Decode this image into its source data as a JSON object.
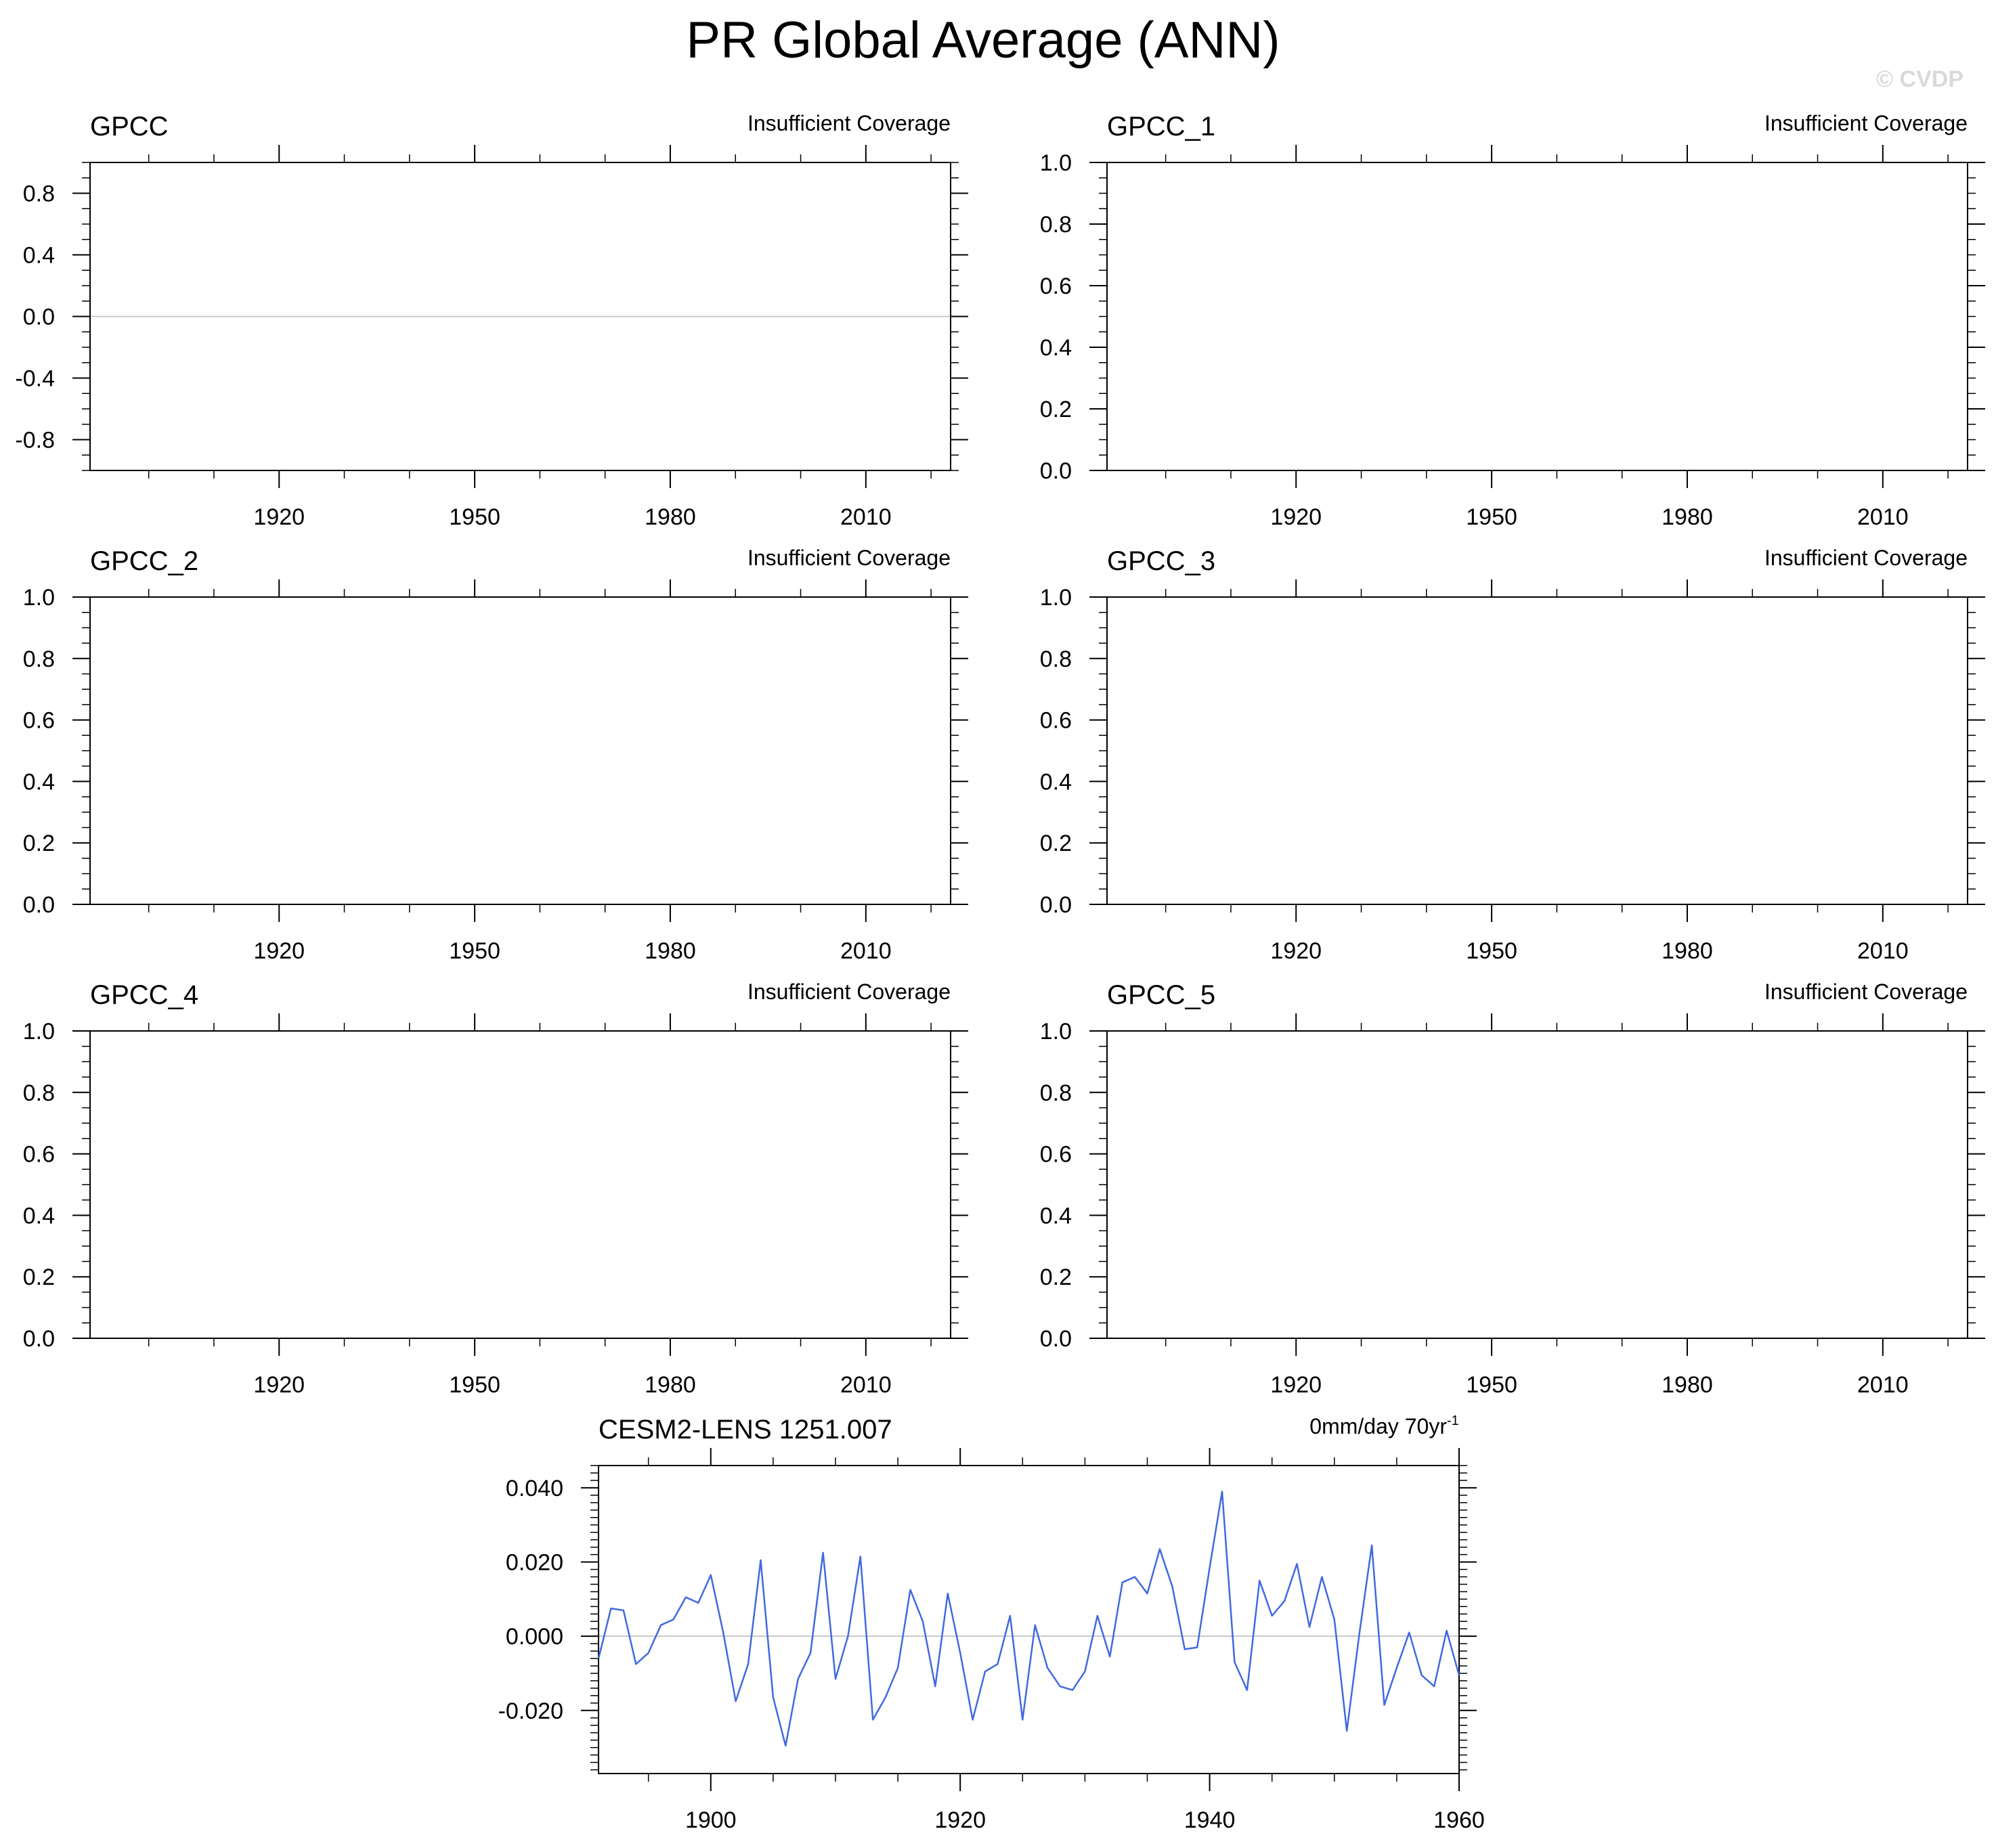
{
  "title": "PR Global Average (ANN)",
  "watermark": "© CVDP",
  "colors": {
    "line": "#4169e1",
    "zero_line": "#c8c8c8",
    "axis": "#000000",
    "watermark": "#d9d9d9"
  },
  "chart_data": [
    {
      "type": "line",
      "title": "GPCC",
      "note": "Insufficient Coverage",
      "xlim": [
        1891,
        2023
      ],
      "xticks": [
        1920,
        1950,
        1980,
        2010
      ],
      "ylim": [
        -1.0,
        1.0
      ],
      "yticks": [
        -0.8,
        -0.4,
        0.0,
        0.4,
        0.8
      ],
      "ytick_labels": [
        "-0.8",
        "-0.4",
        "0.0",
        "0.4",
        "0.8"
      ],
      "zero_line": true,
      "series": []
    },
    {
      "type": "line",
      "title": "GPCC_1",
      "note": "Insufficient Coverage",
      "xlim": [
        1891,
        2023
      ],
      "xticks": [
        1920,
        1950,
        1980,
        2010
      ],
      "ylim": [
        0.0,
        1.0
      ],
      "yticks": [
        0.0,
        0.2,
        0.4,
        0.6,
        0.8,
        1.0
      ],
      "ytick_labels": [
        "0.0",
        "0.2",
        "0.4",
        "0.6",
        "0.8",
        "1.0"
      ],
      "zero_line": false,
      "series": []
    },
    {
      "type": "line",
      "title": "GPCC_2",
      "note": "Insufficient Coverage",
      "xlim": [
        1891,
        2023
      ],
      "xticks": [
        1920,
        1950,
        1980,
        2010
      ],
      "ylim": [
        0.0,
        1.0
      ],
      "yticks": [
        0.0,
        0.2,
        0.4,
        0.6,
        0.8,
        1.0
      ],
      "ytick_labels": [
        "0.0",
        "0.2",
        "0.4",
        "0.6",
        "0.8",
        "1.0"
      ],
      "zero_line": false,
      "series": []
    },
    {
      "type": "line",
      "title": "GPCC_3",
      "note": "Insufficient Coverage",
      "xlim": [
        1891,
        2023
      ],
      "xticks": [
        1920,
        1950,
        1980,
        2010
      ],
      "ylim": [
        0.0,
        1.0
      ],
      "yticks": [
        0.0,
        0.2,
        0.4,
        0.6,
        0.8,
        1.0
      ],
      "ytick_labels": [
        "0.0",
        "0.2",
        "0.4",
        "0.6",
        "0.8",
        "1.0"
      ],
      "zero_line": false,
      "series": []
    },
    {
      "type": "line",
      "title": "GPCC_4",
      "note": "Insufficient Coverage",
      "xlim": [
        1891,
        2023
      ],
      "xticks": [
        1920,
        1950,
        1980,
        2010
      ],
      "ylim": [
        0.0,
        1.0
      ],
      "yticks": [
        0.0,
        0.2,
        0.4,
        0.6,
        0.8,
        1.0
      ],
      "ytick_labels": [
        "0.0",
        "0.2",
        "0.4",
        "0.6",
        "0.8",
        "1.0"
      ],
      "zero_line": false,
      "series": []
    },
    {
      "type": "line",
      "title": "GPCC_5",
      "note": "Insufficient Coverage",
      "xlim": [
        1891,
        2023
      ],
      "xticks": [
        1920,
        1950,
        1980,
        2010
      ],
      "ylim": [
        0.0,
        1.0
      ],
      "yticks": [
        0.0,
        0.2,
        0.4,
        0.6,
        0.8,
        1.0
      ],
      "ytick_labels": [
        "0.0",
        "0.2",
        "0.4",
        "0.6",
        "0.8",
        "1.0"
      ],
      "zero_line": false,
      "series": []
    },
    {
      "type": "line",
      "title": "CESM2-LENS 1251.007",
      "note": "0mm/day 70yr",
      "note_superscript": "-1",
      "xlim": [
        1891,
        1960
      ],
      "xticks": [
        1900,
        1920,
        1940,
        1960
      ],
      "ylim": [
        -0.037,
        0.046
      ],
      "yticks": [
        -0.02,
        0.0,
        0.02,
        0.04
      ],
      "ytick_labels": [
        "-0.020",
        "0.000",
        "0.020",
        "0.040"
      ],
      "zero_line": true,
      "x": [
        1891,
        1892,
        1893,
        1894,
        1895,
        1896,
        1897,
        1898,
        1899,
        1900,
        1901,
        1902,
        1903,
        1904,
        1905,
        1906,
        1907,
        1908,
        1909,
        1910,
        1911,
        1912,
        1913,
        1914,
        1915,
        1916,
        1917,
        1918,
        1919,
        1920,
        1921,
        1922,
        1923,
        1924,
        1925,
        1926,
        1927,
        1928,
        1929,
        1930,
        1931,
        1932,
        1933,
        1934,
        1935,
        1936,
        1937,
        1938,
        1939,
        1940,
        1941,
        1942,
        1943,
        1944,
        1945,
        1946,
        1947,
        1948,
        1949,
        1950,
        1951,
        1952,
        1953,
        1954,
        1955,
        1956,
        1957,
        1958,
        1959,
        1960
      ],
      "series": [
        {
          "values": [
            -0.006,
            0.0075,
            0.007,
            -0.0075,
            -0.0045,
            0.003,
            0.0045,
            0.0105,
            0.009,
            0.0165,
            0.001,
            -0.0175,
            -0.0075,
            0.0205,
            -0.0165,
            -0.0295,
            -0.0115,
            -0.0045,
            0.0225,
            -0.0115,
            0.0,
            0.0215,
            -0.0225,
            -0.0165,
            -0.0085,
            0.0125,
            0.004,
            -0.0135,
            0.0115,
            -0.0045,
            -0.0225,
            -0.0095,
            -0.0075,
            0.0055,
            -0.0225,
            0.003,
            -0.0085,
            -0.0135,
            -0.0145,
            -0.0095,
            0.0055,
            -0.0055,
            0.0145,
            0.016,
            0.0115,
            0.0235,
            0.0135,
            -0.0035,
            -0.003,
            0.0185,
            0.039,
            -0.007,
            -0.0145,
            0.015,
            0.0055,
            0.0095,
            0.0195,
            0.0025,
            0.016,
            0.0045,
            -0.0255,
            0.0005,
            0.0245,
            -0.0185,
            -0.0085,
            0.001,
            -0.0105,
            -0.0135,
            0.0015,
            -0.0105
          ]
        }
      ]
    }
  ]
}
